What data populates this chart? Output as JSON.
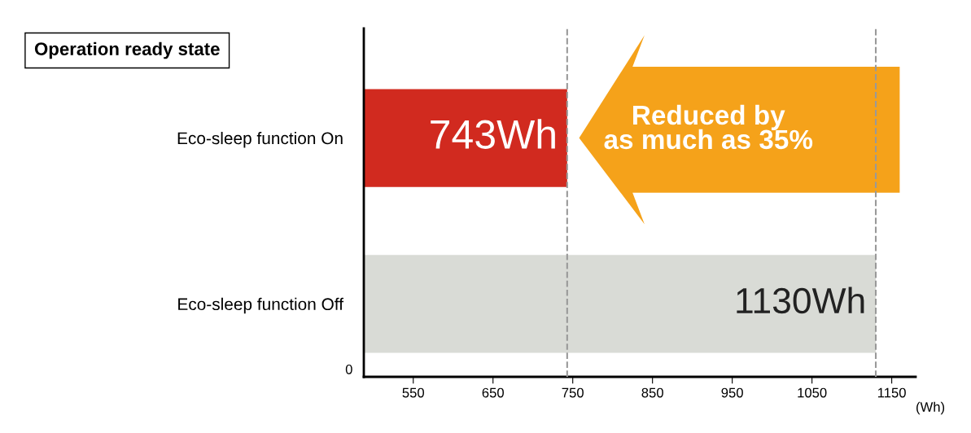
{
  "chart_data": {
    "type": "bar",
    "orientation": "horizontal",
    "title": "Operation ready state",
    "xlabel": "(Wh)",
    "categories": [
      "Eco-sleep function On",
      "Eco-sleep function Off"
    ],
    "values": [
      743,
      1130
    ],
    "colors": [
      "#d12a1f",
      "#d9dbd6"
    ],
    "value_labels": [
      "743Wh",
      "1130Wh"
    ],
    "xlim": [
      488,
      1180
    ],
    "xticks": [
      550,
      650,
      750,
      850,
      950,
      1050,
      1150
    ],
    "grid": false,
    "ref_lines": [
      {
        "axis": "x",
        "value": 743,
        "color": "#999999",
        "line_style": "dashed"
      },
      {
        "axis": "x",
        "value": 1130,
        "color": "#999999",
        "line_style": "dashed"
      }
    ],
    "annotations": [
      "0",
      "Reduced by\nas much as 35%"
    ]
  }
}
